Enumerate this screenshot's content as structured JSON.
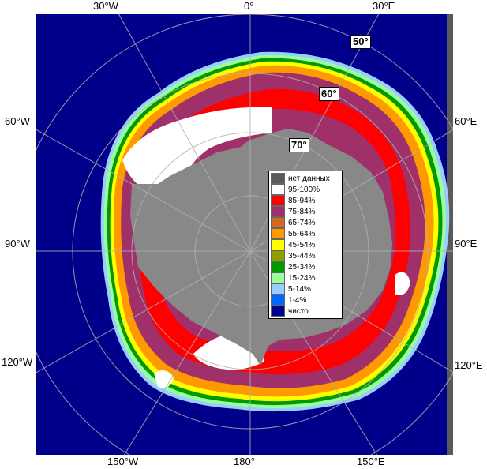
{
  "axes": {
    "top": [
      "30°W",
      "0°",
      "30°E"
    ],
    "left": [
      "60°W",
      "90°W",
      "120°W"
    ],
    "right": [
      "60°E",
      "90°E",
      "120°E"
    ],
    "bottom": [
      "150°W",
      "180°",
      "150°E"
    ]
  },
  "latitudes": [
    "50°",
    "60°",
    "70°"
  ],
  "legend": [
    {
      "label": "нет данных",
      "color": "#5a5a5a"
    },
    {
      "label": "95-100%",
      "color": "#ffffff"
    },
    {
      "label": "85-94%",
      "color": "#ff0000"
    },
    {
      "label": "75-84%",
      "color": "#a0306a"
    },
    {
      "label": "65-74%",
      "color": "#d2691e"
    },
    {
      "label": "55-64%",
      "color": "#ff9900"
    },
    {
      "label": "45-54%",
      "color": "#ffff00"
    },
    {
      "label": "35-44%",
      "color": "#8ca000"
    },
    {
      "label": "25-34%",
      "color": "#009900"
    },
    {
      "label": "15-24%",
      "color": "#99ff99"
    },
    {
      "label": "5-14%",
      "color": "#99ccff"
    },
    {
      "label": "1-4%",
      "color": "#0066ff"
    },
    {
      "label": "чисто",
      "color": "#00008b"
    }
  ],
  "colors": {
    "ocean": "#00008b",
    "land": "#888888",
    "nodata": "#5a5a5a"
  }
}
